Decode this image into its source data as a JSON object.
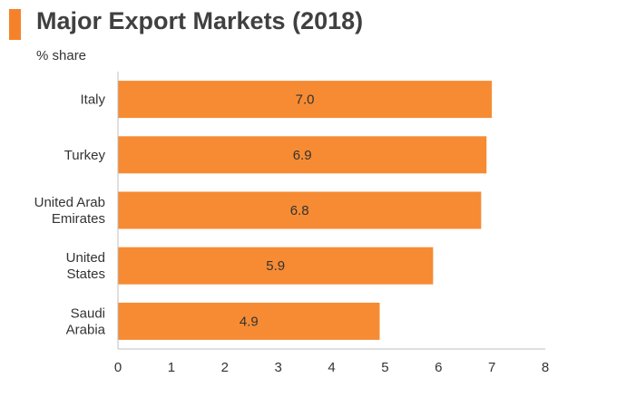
{
  "title": "Major Export Markets (2018)",
  "subtitle": "% share",
  "colors": {
    "accent": "#F5822B",
    "bar": "#F68B33",
    "axis": "#BFBFBF",
    "text": "#333333"
  },
  "chart_data": {
    "type": "bar",
    "orientation": "horizontal",
    "title": "Major Export Markets (2018)",
    "subtitle": "% share",
    "categories": [
      [
        "Italy"
      ],
      [
        "Turkey"
      ],
      [
        "United Arab",
        "Emirates"
      ],
      [
        "United",
        "States"
      ],
      [
        "Saudi",
        "Arabia"
      ]
    ],
    "values": [
      7.0,
      6.9,
      6.8,
      5.9,
      4.9
    ],
    "value_labels": [
      "7.0",
      "6.9",
      "6.8",
      "5.9",
      "4.9"
    ],
    "xlim": [
      0,
      8
    ],
    "xticks": [
      "0",
      "1",
      "2",
      "3",
      "4",
      "5",
      "6",
      "7",
      "8"
    ],
    "grid": false,
    "legend": "none"
  }
}
